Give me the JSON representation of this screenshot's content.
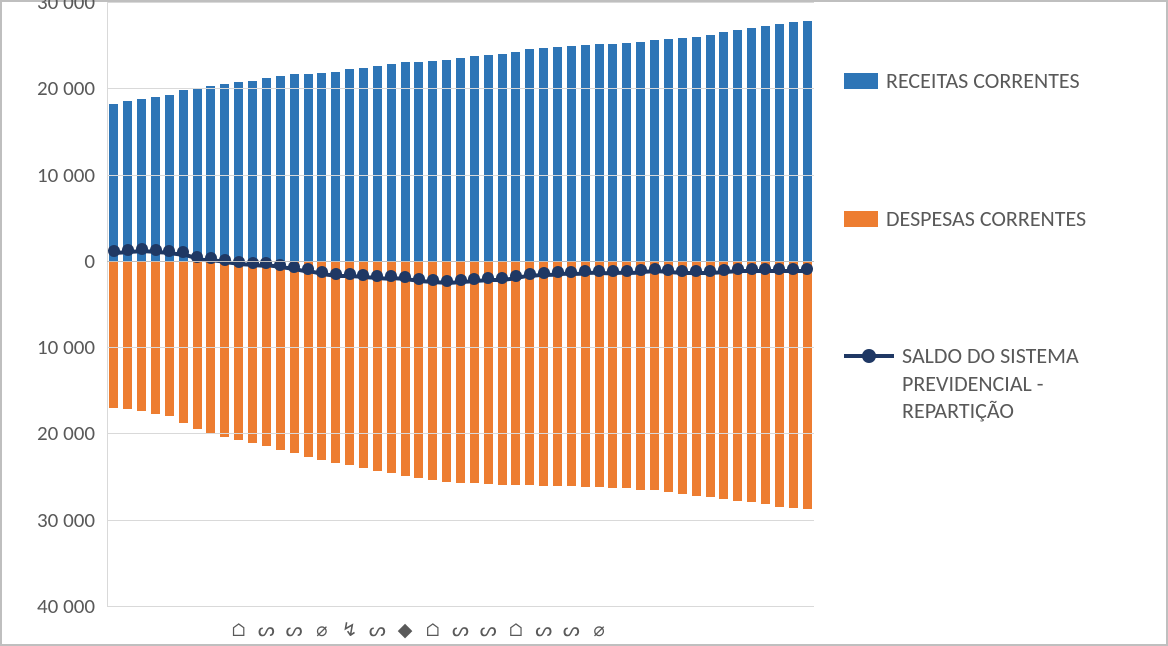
{
  "chart": {
    "type": "bar+line",
    "background_color": "#ffffff",
    "frame_border_color": "#bfbfbf",
    "plot_border_left_color": "#d9d9d9",
    "grid_color": "#d9d9d9",
    "zero_line_color": "#bfbfbf",
    "text_color": "#595959",
    "font_family": "Calibri",
    "tick_fontsize": 21,
    "legend_fontsize": 22,
    "ymax": 30000,
    "ymin": -40000,
    "ytick_step": 10000,
    "ytick_labels_top_to_bottom": [
      "30 000",
      "20 000",
      "10 000",
      "0",
      "10 000",
      "20 000",
      "30 000",
      "40 000"
    ],
    "bar_gap_ratio": 0.35,
    "series": {
      "receitas": {
        "label": "RECEITAS CORRENTES",
        "color": "#2e75b6",
        "values": [
          18200,
          18500,
          18800,
          19000,
          19200,
          19800,
          20000,
          20300,
          20500,
          20700,
          20900,
          21200,
          21400,
          21600,
          21700,
          21800,
          21900,
          22200,
          22400,
          22600,
          22800,
          23000,
          23100,
          23200,
          23300,
          23500,
          23700,
          23900,
          24000,
          24200,
          24500,
          24700,
          24800,
          24900,
          25000,
          25100,
          25100,
          25200,
          25400,
          25600,
          25700,
          25800,
          26000,
          26200,
          26500,
          26800,
          27000,
          27200,
          27500,
          27700,
          27800
        ]
      },
      "despesas": {
        "label": "DESPESAS CORRENTES",
        "color": "#ed7d31",
        "values": [
          17000,
          17200,
          17400,
          17700,
          18000,
          18800,
          19500,
          20000,
          20400,
          20800,
          21100,
          21500,
          21900,
          22300,
          22700,
          23100,
          23400,
          23700,
          24000,
          24300,
          24600,
          24900,
          25200,
          25400,
          25600,
          25700,
          25800,
          25900,
          26000,
          26000,
          26000,
          26050,
          26100,
          26150,
          26200,
          26250,
          26300,
          26350,
          26500,
          26600,
          26800,
          27000,
          27200,
          27400,
          27600,
          27800,
          28000,
          28200,
          28500,
          28700,
          28800
        ]
      },
      "saldo": {
        "label": "SALDO DO SISTEMA PREVIDENCIAL - REPARTIÇÃO",
        "line_color": "#1f3864",
        "marker_color": "#1f3864",
        "marker_size": 12,
        "line_width": 4,
        "values": [
          1200,
          1300,
          1400,
          1300,
          1200,
          1000,
          500,
          300,
          100,
          -100,
          -200,
          -300,
          -500,
          -700,
          -1000,
          -1300,
          -1500,
          -1500,
          -1600,
          -1700,
          -1800,
          -1900,
          -2100,
          -2200,
          -2300,
          -2200,
          -2100,
          -2000,
          -2000,
          -1800,
          -1500,
          -1350,
          -1300,
          -1250,
          -1200,
          -1150,
          -1200,
          -1150,
          -1100,
          -1000,
          -1100,
          -1200,
          -1200,
          -1200,
          -1100,
          -1000,
          -1000,
          -1000,
          -1000,
          -1000,
          -1000
        ]
      }
    },
    "x_stub_glyphs": [
      "⌂",
      "ᔕ",
      "ᔕ",
      "⌀",
      "↯",
      "ᔕ",
      "◆",
      "⌂",
      "ᔕ",
      "ᔕ",
      "⌂",
      "ᔕ",
      "ᔕ",
      "⌀"
    ],
    "legend_position": "right"
  }
}
